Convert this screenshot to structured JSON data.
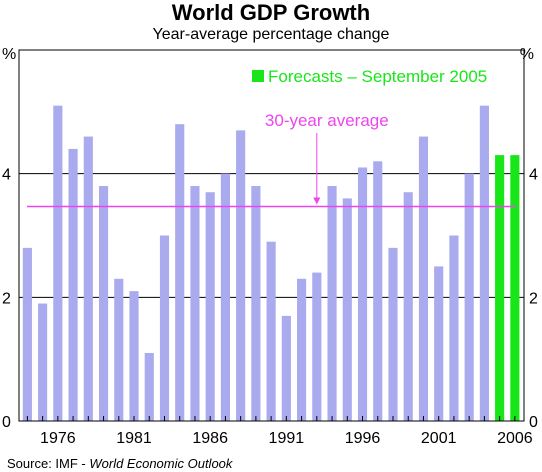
{
  "chart_data": {
    "type": "bar",
    "title": "World GDP Growth",
    "subtitle": "Year-average percentage change",
    "unit_left": "%",
    "unit_right": "%",
    "x": [
      1974,
      1975,
      1976,
      1977,
      1978,
      1979,
      1980,
      1981,
      1982,
      1983,
      1984,
      1985,
      1986,
      1987,
      1988,
      1989,
      1990,
      1991,
      1992,
      1993,
      1994,
      1995,
      1996,
      1997,
      1998,
      1999,
      2000,
      2001,
      2002,
      2003,
      2004,
      2005,
      2006
    ],
    "values": [
      2.8,
      1.9,
      5.1,
      4.4,
      4.6,
      3.8,
      2.3,
      2.1,
      1.1,
      3.0,
      4.8,
      3.8,
      3.7,
      4.0,
      4.7,
      3.8,
      2.9,
      1.7,
      2.3,
      2.4,
      3.8,
      3.6,
      4.1,
      4.2,
      2.8,
      3.7,
      4.6,
      2.5,
      3.0,
      4.0,
      5.1,
      4.3,
      4.3
    ],
    "forecast_years": [
      2005,
      2006
    ],
    "average": 3.47,
    "average_label": "30-year average",
    "legend": {
      "label": "Forecasts –  September 2005",
      "color": "#19e619",
      "placement": "top-right"
    },
    "x_tick_labels": [
      "1976",
      "1981",
      "1986",
      "1991",
      "1996",
      "2001",
      "2006"
    ],
    "y_ticks": [
      0,
      2,
      4
    ],
    "ylim": [
      0,
      6
    ],
    "grid": true,
    "colors": {
      "actual": "#aaaaee",
      "forecast": "#19e619",
      "average": "#ee44ee",
      "grid": "#000000"
    },
    "source_prefix": "Source: IMF - ",
    "source_italic": "World Economic Outlook"
  }
}
